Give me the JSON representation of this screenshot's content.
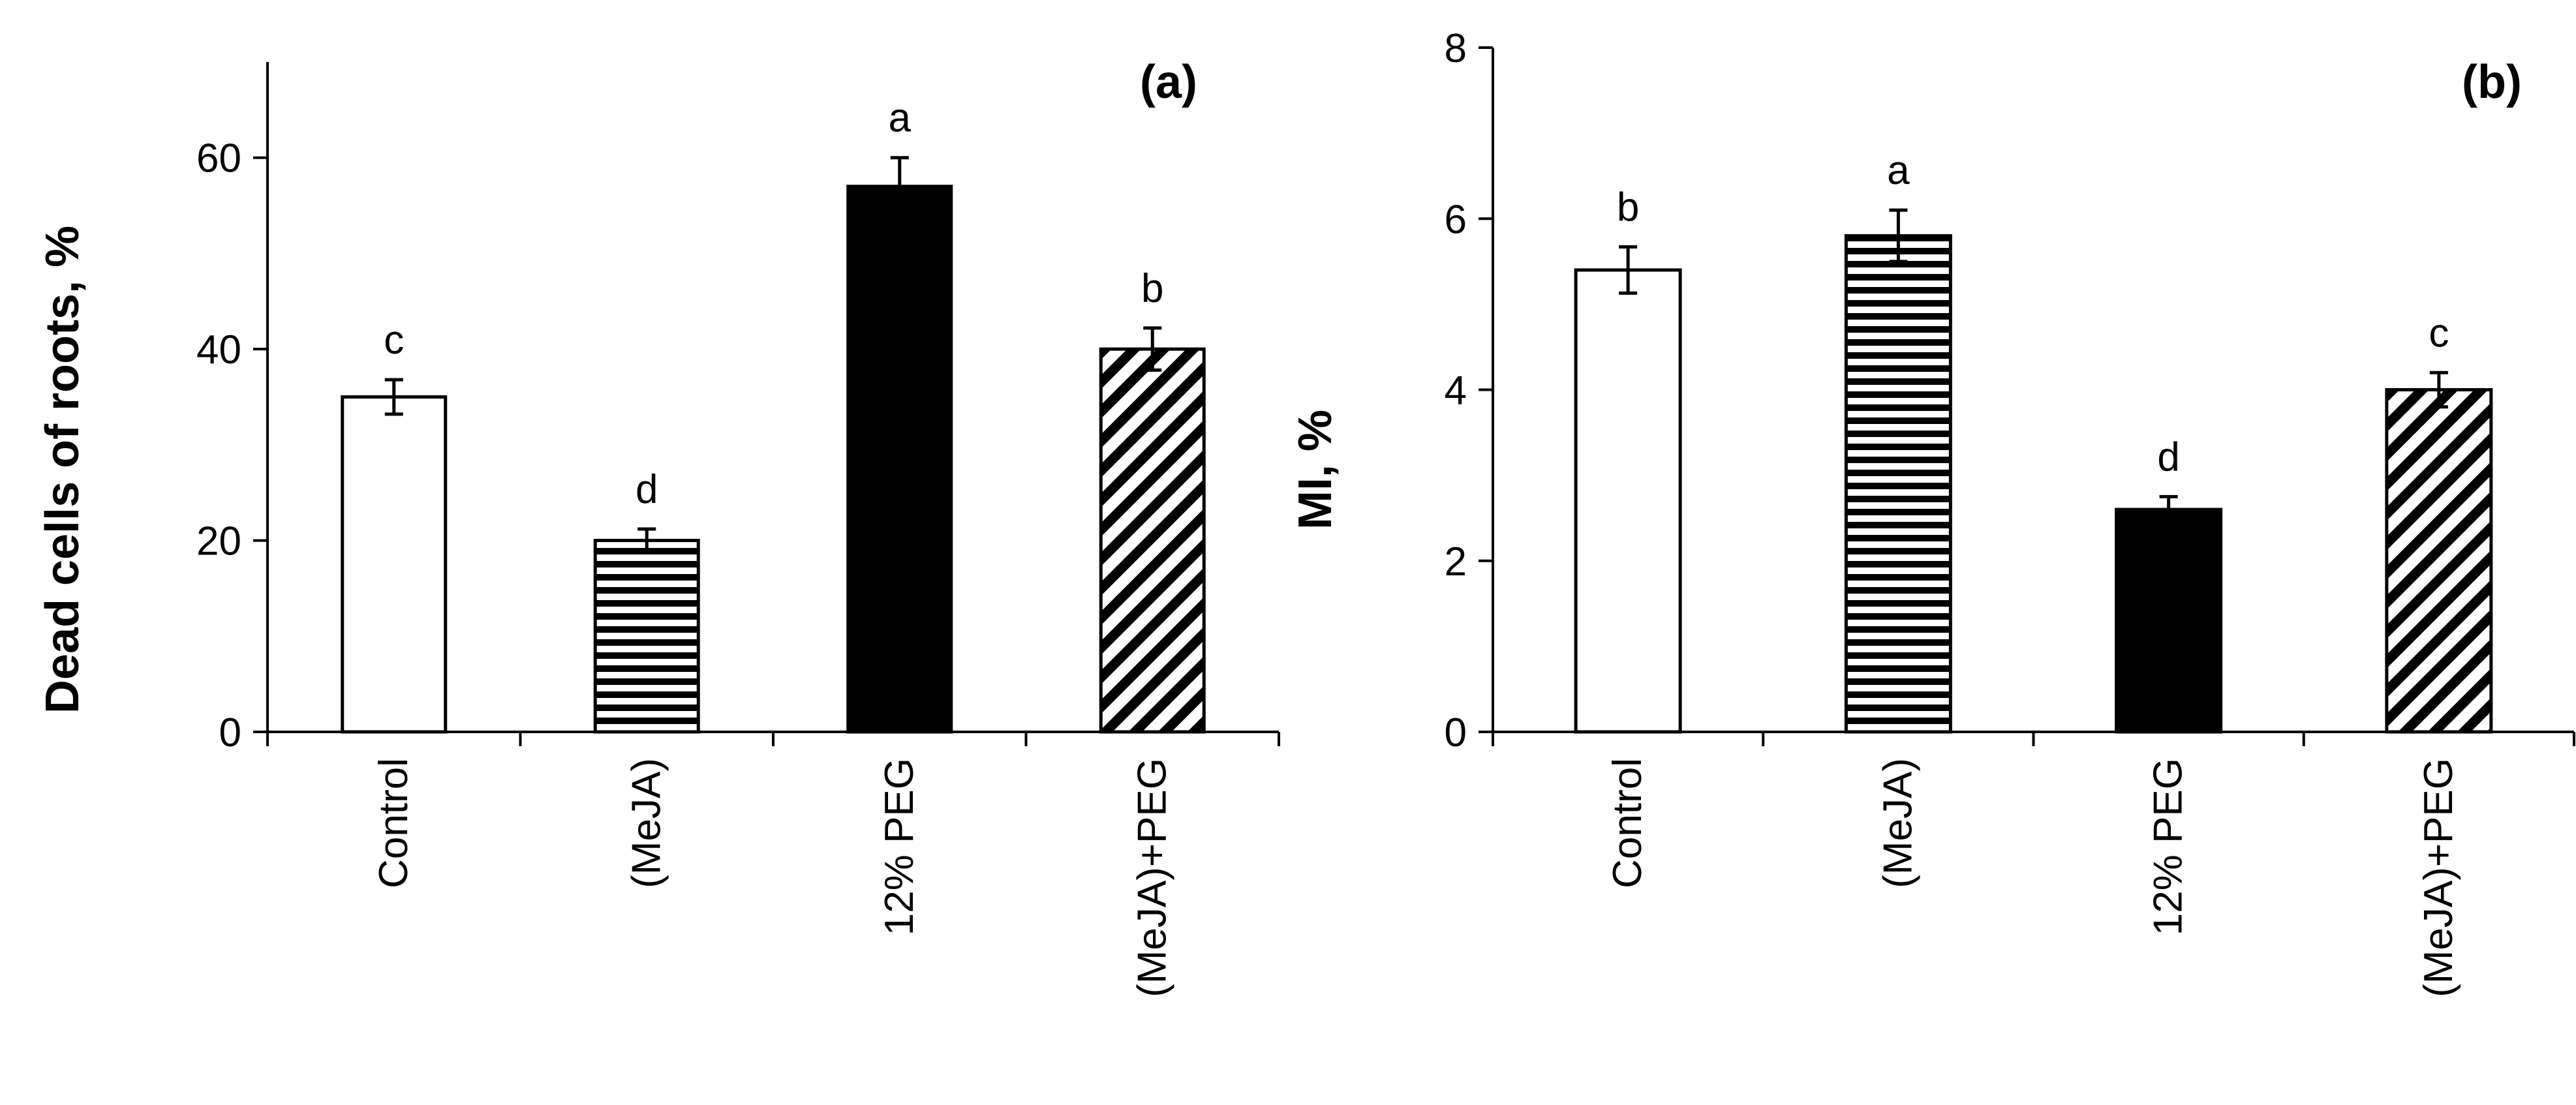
{
  "colors": {
    "control": "#ffffff",
    "meja": "horizontal-stripes",
    "peg": "#000000",
    "meja_peg": "diagonal-stripes",
    "axis": "#000000"
  },
  "chart_data": [
    {
      "type": "bar",
      "panel_label": "a",
      "ylabel": "Dead cells of roots, %",
      "xlabel": "",
      "ylim": [
        0,
        70
      ],
      "yticks": [
        0,
        20,
        40,
        60
      ],
      "categories": [
        "Control",
        "(MeJA)",
        "12% PEG",
        "(MeJA)+PEG"
      ],
      "values": [
        35,
        20,
        57,
        40
      ],
      "errors": [
        1.8,
        1.2,
        3.0,
        2.2
      ],
      "letters": [
        "c",
        "d",
        "a",
        "b"
      ],
      "fills": [
        "control",
        "meja",
        "peg",
        "meja_peg"
      ],
      "grid": false
    },
    {
      "type": "bar",
      "panel_label": "b",
      "ylabel": "MI, %",
      "xlabel": "",
      "ylim": [
        0,
        8
      ],
      "yticks": [
        0,
        2,
        4,
        6,
        8
      ],
      "categories": [
        "Control",
        "(MeJA)",
        "12% PEG",
        "(MeJA)+PEG"
      ],
      "values": [
        5.4,
        5.8,
        2.6,
        4.0
      ],
      "errors": [
        0.27,
        0.3,
        0.15,
        0.2
      ],
      "letters": [
        "b",
        "a",
        "d",
        "c"
      ],
      "fills": [
        "control",
        "meja",
        "peg",
        "meja_peg"
      ],
      "grid": false
    }
  ]
}
